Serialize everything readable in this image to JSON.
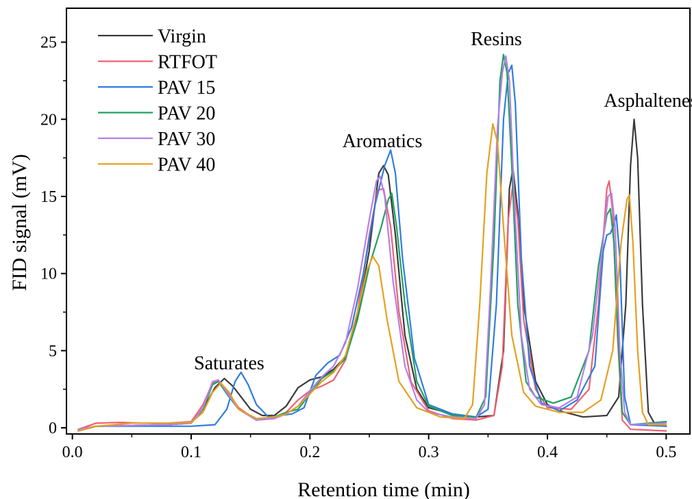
{
  "chart_data": {
    "type": "line",
    "title": "",
    "xlabel": "Retention time (min)",
    "ylabel": "FID signal (mV)",
    "xlim": [
      -0.005,
      0.52
    ],
    "ylim": [
      -0.4,
      27.2
    ],
    "x_ticks": [
      0.0,
      0.1,
      0.2,
      0.3,
      0.4,
      0.5
    ],
    "x_tick_labels": [
      "0.0",
      "0.1",
      "0.2",
      "0.3",
      "0.4",
      "0.5"
    ],
    "y_ticks": [
      0,
      5,
      10,
      15,
      20,
      25
    ],
    "y_tick_labels": [
      "0",
      "5",
      "10",
      "15",
      "20",
      "25"
    ],
    "grid": false,
    "legend_position": "top-left",
    "annotations": [
      {
        "text": "Saturates",
        "x": 0.132,
        "y": 3.8
      },
      {
        "text": "Aromatics",
        "x": 0.261,
        "y": 18.2
      },
      {
        "text": "Resins",
        "x": 0.357,
        "y": 24.8
      },
      {
        "text": "Asphaltenes",
        "x": 0.487,
        "y": 20.8
      }
    ],
    "series": [
      {
        "name": "Virgin",
        "color": "#3a3a3a",
        "points": [
          [
            0.005,
            -0.2
          ],
          [
            0.02,
            0.1
          ],
          [
            0.05,
            0.15
          ],
          [
            0.08,
            0.2
          ],
          [
            0.1,
            0.3
          ],
          [
            0.11,
            1.2
          ],
          [
            0.12,
            2.6
          ],
          [
            0.128,
            3.2
          ],
          [
            0.135,
            2.7
          ],
          [
            0.15,
            1.2
          ],
          [
            0.16,
            0.8
          ],
          [
            0.17,
            0.8
          ],
          [
            0.18,
            1.4
          ],
          [
            0.19,
            2.6
          ],
          [
            0.2,
            3.1
          ],
          [
            0.21,
            3.3
          ],
          [
            0.22,
            3.8
          ],
          [
            0.23,
            4.6
          ],
          [
            0.24,
            7.2
          ],
          [
            0.25,
            11.5
          ],
          [
            0.258,
            16.5
          ],
          [
            0.262,
            17.0
          ],
          [
            0.266,
            16.4
          ],
          [
            0.272,
            12.5
          ],
          [
            0.28,
            6.0
          ],
          [
            0.29,
            2.5
          ],
          [
            0.3,
            1.3
          ],
          [
            0.32,
            0.9
          ],
          [
            0.34,
            0.7
          ],
          [
            0.355,
            0.8
          ],
          [
            0.363,
            5.0
          ],
          [
            0.368,
            15.5
          ],
          [
            0.371,
            16.8
          ],
          [
            0.375,
            14.0
          ],
          [
            0.38,
            8.0
          ],
          [
            0.39,
            3.0
          ],
          [
            0.4,
            1.5
          ],
          [
            0.41,
            1.1
          ],
          [
            0.43,
            0.7
          ],
          [
            0.45,
            0.8
          ],
          [
            0.46,
            2.0
          ],
          [
            0.466,
            8.0
          ],
          [
            0.47,
            17.0
          ],
          [
            0.473,
            20.0
          ],
          [
            0.476,
            17.5
          ],
          [
            0.48,
            8.0
          ],
          [
            0.485,
            1.0
          ],
          [
            0.49,
            0.3
          ],
          [
            0.5,
            0.1
          ]
        ]
      },
      {
        "name": "RTFOT",
        "color": "#f06070",
        "points": [
          [
            0.005,
            -0.1
          ],
          [
            0.02,
            0.3
          ],
          [
            0.04,
            0.35
          ],
          [
            0.06,
            0.3
          ],
          [
            0.08,
            0.3
          ],
          [
            0.1,
            0.4
          ],
          [
            0.11,
            1.5
          ],
          [
            0.118,
            2.9
          ],
          [
            0.123,
            3.0
          ],
          [
            0.13,
            2.4
          ],
          [
            0.14,
            1.3
          ],
          [
            0.155,
            0.5
          ],
          [
            0.17,
            0.6
          ],
          [
            0.18,
            1.0
          ],
          [
            0.19,
            1.8
          ],
          [
            0.2,
            2.4
          ],
          [
            0.21,
            2.7
          ],
          [
            0.22,
            3.1
          ],
          [
            0.23,
            4.4
          ],
          [
            0.24,
            7.5
          ],
          [
            0.25,
            12.5
          ],
          [
            0.257,
            15.4
          ],
          [
            0.262,
            15.5
          ],
          [
            0.268,
            13.0
          ],
          [
            0.275,
            7.5
          ],
          [
            0.285,
            3.0
          ],
          [
            0.3,
            1.1
          ],
          [
            0.32,
            0.6
          ],
          [
            0.34,
            0.5
          ],
          [
            0.355,
            0.8
          ],
          [
            0.362,
            4.0
          ],
          [
            0.367,
            13.5
          ],
          [
            0.371,
            15.8
          ],
          [
            0.375,
            13.5
          ],
          [
            0.38,
            7.0
          ],
          [
            0.39,
            2.5
          ],
          [
            0.4,
            1.3
          ],
          [
            0.42,
            1.2
          ],
          [
            0.435,
            2.5
          ],
          [
            0.443,
            8.0
          ],
          [
            0.45,
            15.5
          ],
          [
            0.452,
            16.0
          ],
          [
            0.455,
            14.0
          ],
          [
            0.459,
            6.0
          ],
          [
            0.463,
            0.5
          ],
          [
            0.47,
            -0.1
          ],
          [
            0.5,
            -0.2
          ]
        ]
      },
      {
        "name": "PAV 15",
        "color": "#2f7ce0",
        "points": [
          [
            0.005,
            -0.1
          ],
          [
            0.02,
            0.1
          ],
          [
            0.05,
            0.1
          ],
          [
            0.08,
            0.1
          ],
          [
            0.1,
            0.1
          ],
          [
            0.12,
            0.2
          ],
          [
            0.13,
            1.2
          ],
          [
            0.137,
            3.0
          ],
          [
            0.142,
            3.6
          ],
          [
            0.148,
            2.8
          ],
          [
            0.155,
            1.5
          ],
          [
            0.165,
            0.7
          ],
          [
            0.175,
            0.8
          ],
          [
            0.185,
            0.9
          ],
          [
            0.195,
            1.3
          ],
          [
            0.205,
            3.4
          ],
          [
            0.215,
            4.2
          ],
          [
            0.225,
            4.7
          ],
          [
            0.235,
            6.5
          ],
          [
            0.245,
            10.0
          ],
          [
            0.255,
            14.5
          ],
          [
            0.263,
            17.0
          ],
          [
            0.268,
            18.0
          ],
          [
            0.272,
            16.5
          ],
          [
            0.278,
            11.0
          ],
          [
            0.288,
            4.5
          ],
          [
            0.3,
            1.5
          ],
          [
            0.32,
            0.9
          ],
          [
            0.34,
            0.7
          ],
          [
            0.35,
            1.2
          ],
          [
            0.357,
            8.0
          ],
          [
            0.363,
            20.0
          ],
          [
            0.367,
            23.0
          ],
          [
            0.37,
            23.5
          ],
          [
            0.373,
            21.0
          ],
          [
            0.378,
            11.0
          ],
          [
            0.385,
            4.0
          ],
          [
            0.395,
            1.6
          ],
          [
            0.41,
            1.1
          ],
          [
            0.425,
            1.8
          ],
          [
            0.44,
            4.0
          ],
          [
            0.447,
            11.5
          ],
          [
            0.45,
            12.5
          ],
          [
            0.453,
            12.6
          ],
          [
            0.456,
            13.2
          ],
          [
            0.458,
            13.8
          ],
          [
            0.461,
            11.0
          ],
          [
            0.465,
            2.0
          ],
          [
            0.47,
            0.2
          ],
          [
            0.5,
            0.1
          ]
        ]
      },
      {
        "name": "PAV 20",
        "color": "#20a060",
        "points": [
          [
            0.005,
            -0.1
          ],
          [
            0.02,
            0.1
          ],
          [
            0.05,
            0.15
          ],
          [
            0.08,
            0.2
          ],
          [
            0.1,
            0.3
          ],
          [
            0.11,
            1.2
          ],
          [
            0.118,
            2.8
          ],
          [
            0.123,
            3.0
          ],
          [
            0.13,
            2.2
          ],
          [
            0.14,
            1.2
          ],
          [
            0.155,
            0.5
          ],
          [
            0.17,
            0.7
          ],
          [
            0.18,
            1.0
          ],
          [
            0.19,
            1.2
          ],
          [
            0.2,
            2.2
          ],
          [
            0.21,
            3.2
          ],
          [
            0.22,
            3.7
          ],
          [
            0.23,
            4.5
          ],
          [
            0.24,
            7.0
          ],
          [
            0.25,
            10.5
          ],
          [
            0.26,
            13.0
          ],
          [
            0.266,
            14.8
          ],
          [
            0.269,
            15.2
          ],
          [
            0.273,
            13.0
          ],
          [
            0.28,
            8.0
          ],
          [
            0.29,
            3.0
          ],
          [
            0.3,
            1.4
          ],
          [
            0.32,
            0.8
          ],
          [
            0.34,
            0.7
          ],
          [
            0.348,
            2.0
          ],
          [
            0.355,
            12.0
          ],
          [
            0.36,
            22.5
          ],
          [
            0.363,
            24.2
          ],
          [
            0.366,
            23.0
          ],
          [
            0.37,
            17.0
          ],
          [
            0.375,
            8.0
          ],
          [
            0.382,
            3.0
          ],
          [
            0.39,
            2.0
          ],
          [
            0.405,
            1.6
          ],
          [
            0.42,
            2.0
          ],
          [
            0.435,
            5.0
          ],
          [
            0.443,
            10.5
          ],
          [
            0.45,
            13.8
          ],
          [
            0.453,
            14.2
          ],
          [
            0.456,
            12.0
          ],
          [
            0.46,
            5.0
          ],
          [
            0.463,
            1.0
          ],
          [
            0.47,
            0.2
          ],
          [
            0.5,
            0.4
          ]
        ]
      },
      {
        "name": "PAV 30",
        "color": "#b67fe8",
        "points": [
          [
            0.005,
            -0.1
          ],
          [
            0.02,
            0.1
          ],
          [
            0.05,
            0.15
          ],
          [
            0.08,
            0.2
          ],
          [
            0.1,
            0.3
          ],
          [
            0.11,
            1.3
          ],
          [
            0.118,
            3.0
          ],
          [
            0.123,
            3.1
          ],
          [
            0.13,
            2.3
          ],
          [
            0.14,
            1.2
          ],
          [
            0.155,
            0.5
          ],
          [
            0.17,
            0.6
          ],
          [
            0.18,
            0.9
          ],
          [
            0.19,
            1.4
          ],
          [
            0.2,
            2.4
          ],
          [
            0.21,
            3.3
          ],
          [
            0.22,
            4.0
          ],
          [
            0.23,
            5.5
          ],
          [
            0.24,
            9.0
          ],
          [
            0.25,
            13.5
          ],
          [
            0.256,
            16.0
          ],
          [
            0.259,
            16.3
          ],
          [
            0.263,
            15.0
          ],
          [
            0.27,
            9.5
          ],
          [
            0.28,
            4.0
          ],
          [
            0.29,
            1.8
          ],
          [
            0.3,
            1.0
          ],
          [
            0.32,
            0.7
          ],
          [
            0.34,
            0.6
          ],
          [
            0.347,
            1.5
          ],
          [
            0.352,
            9.0
          ],
          [
            0.358,
            19.5
          ],
          [
            0.362,
            23.0
          ],
          [
            0.365,
            24.1
          ],
          [
            0.368,
            22.5
          ],
          [
            0.372,
            15.0
          ],
          [
            0.378,
            6.0
          ],
          [
            0.385,
            2.5
          ],
          [
            0.395,
            1.5
          ],
          [
            0.41,
            1.3
          ],
          [
            0.425,
            2.0
          ],
          [
            0.438,
            6.0
          ],
          [
            0.446,
            11.5
          ],
          [
            0.451,
            15.0
          ],
          [
            0.454,
            15.2
          ],
          [
            0.457,
            13.0
          ],
          [
            0.461,
            5.0
          ],
          [
            0.465,
            1.0
          ],
          [
            0.47,
            0.2
          ],
          [
            0.5,
            0.3
          ]
        ]
      },
      {
        "name": "PAV 40",
        "color": "#e5a020",
        "points": [
          [
            0.005,
            -0.2
          ],
          [
            0.02,
            0.1
          ],
          [
            0.05,
            0.3
          ],
          [
            0.08,
            0.3
          ],
          [
            0.1,
            0.35
          ],
          [
            0.11,
            1.0
          ],
          [
            0.118,
            2.3
          ],
          [
            0.125,
            2.9
          ],
          [
            0.132,
            2.3
          ],
          [
            0.14,
            1.2
          ],
          [
            0.155,
            0.6
          ],
          [
            0.17,
            0.7
          ],
          [
            0.18,
            0.9
          ],
          [
            0.19,
            1.4
          ],
          [
            0.2,
            2.2
          ],
          [
            0.21,
            3.0
          ],
          [
            0.22,
            3.6
          ],
          [
            0.23,
            4.7
          ],
          [
            0.24,
            7.5
          ],
          [
            0.248,
            10.2
          ],
          [
            0.253,
            11.1
          ],
          [
            0.258,
            10.5
          ],
          [
            0.265,
            7.0
          ],
          [
            0.275,
            3.0
          ],
          [
            0.29,
            1.3
          ],
          [
            0.31,
            0.7
          ],
          [
            0.33,
            0.6
          ],
          [
            0.337,
            1.5
          ],
          [
            0.343,
            8.0
          ],
          [
            0.349,
            16.5
          ],
          [
            0.354,
            19.7
          ],
          [
            0.358,
            18.5
          ],
          [
            0.363,
            13.0
          ],
          [
            0.37,
            6.0
          ],
          [
            0.38,
            2.3
          ],
          [
            0.39,
            1.4
          ],
          [
            0.41,
            1.0
          ],
          [
            0.43,
            1.0
          ],
          [
            0.445,
            1.8
          ],
          [
            0.455,
            5.0
          ],
          [
            0.462,
            12.0
          ],
          [
            0.467,
            14.8
          ],
          [
            0.469,
            15.1
          ],
          [
            0.472,
            12.0
          ],
          [
            0.476,
            5.0
          ],
          [
            0.48,
            1.0
          ],
          [
            0.485,
            0.2
          ],
          [
            0.5,
            0.2
          ]
        ]
      }
    ]
  }
}
